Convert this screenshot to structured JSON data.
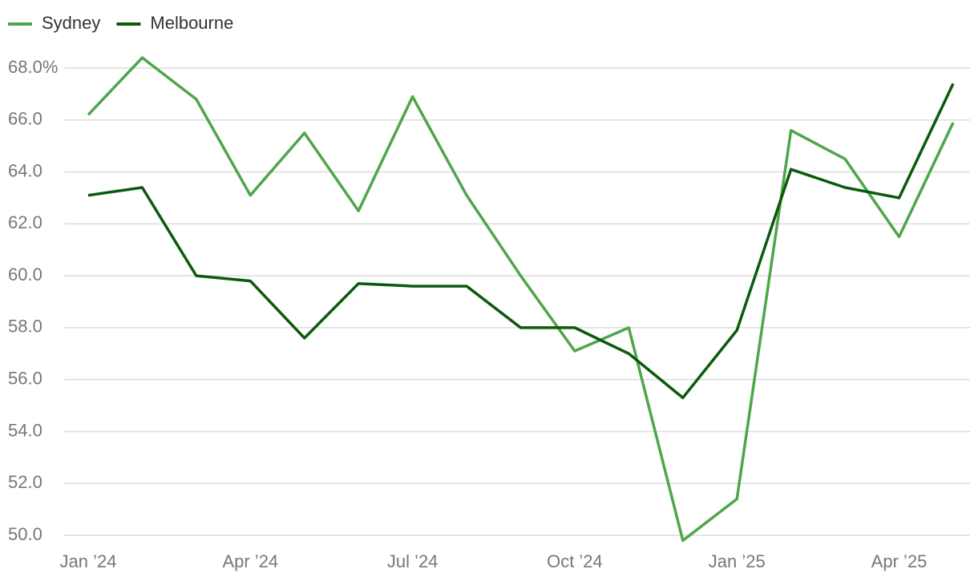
{
  "chart_data": {
    "type": "line",
    "categories": [
      "Jan ’24",
      null,
      null,
      "Apr ’24",
      null,
      null,
      "Jul ’24",
      null,
      null,
      "Oct ’24",
      null,
      null,
      "Jan ’25",
      null,
      null,
      "Apr ’25",
      null
    ],
    "series": [
      {
        "name": "Sydney",
        "color": "#4ea64a",
        "values": [
          66.2,
          68.4,
          66.8,
          63.1,
          65.5,
          62.5,
          66.9,
          63.1,
          60.0,
          57.1,
          58.0,
          49.8,
          51.4,
          65.6,
          64.5,
          61.5,
          65.9
        ]
      },
      {
        "name": "Melbourne",
        "color": "#0b5a0b",
        "values": [
          63.1,
          63.4,
          60.0,
          59.8,
          57.6,
          59.7,
          59.6,
          59.6,
          58.0,
          58.0,
          57.0,
          55.3,
          57.9,
          64.1,
          63.4,
          63.0,
          67.4
        ]
      }
    ],
    "ylim": [
      50,
      68
    ],
    "yticks": [
      {
        "value": 50,
        "label": "50.0"
      },
      {
        "value": 52,
        "label": "52.0"
      },
      {
        "value": 54,
        "label": "54.0"
      },
      {
        "value": 56,
        "label": "56.0"
      },
      {
        "value": 58,
        "label": "58.0"
      },
      {
        "value": 60,
        "label": "60.0"
      },
      {
        "value": 62,
        "label": "62.0"
      },
      {
        "value": 64,
        "label": "64.0"
      },
      {
        "value": 66,
        "label": "66.0"
      },
      {
        "value": 68,
        "label": "68.0%"
      }
    ],
    "grid": true,
    "legend": "top-left"
  }
}
